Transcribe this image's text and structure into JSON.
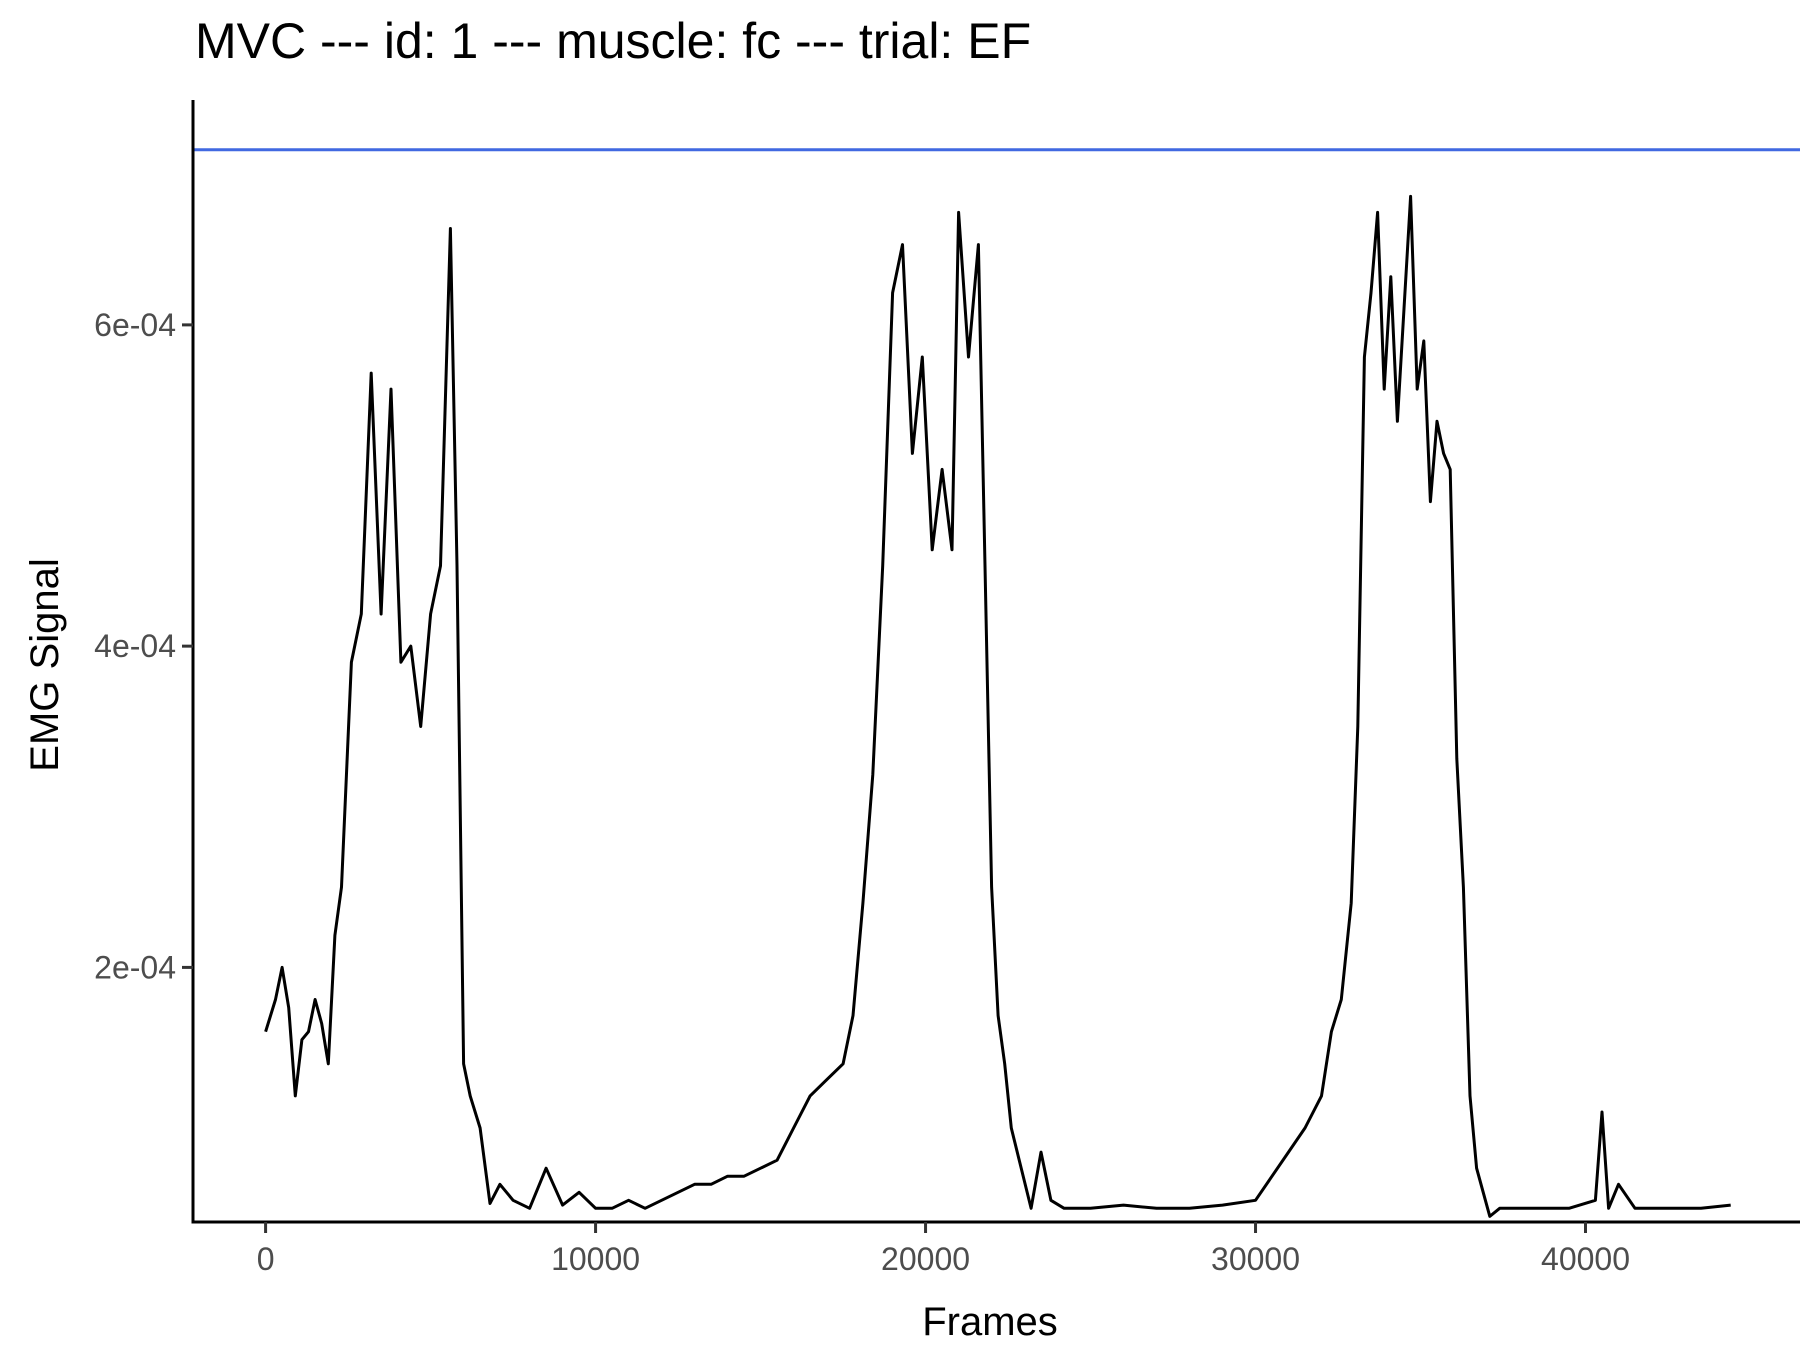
{
  "chart_data": {
    "type": "line",
    "title": "MVC --- id: 1 --- muscle: fc --- trial: EF",
    "xlabel": "Frames",
    "ylabel": "EMG Signal",
    "xlim": [
      -2200,
      46500
    ],
    "ylim": [
      4.15e-05,
      0.00074
    ],
    "x_ticks": [
      0,
      10000,
      20000,
      30000,
      40000
    ],
    "x_tick_labels": [
      "0",
      "10000",
      "20000",
      "30000",
      "40000"
    ],
    "y_ticks": [
      0.0002,
      0.0004,
      0.0006
    ],
    "y_tick_labels": [
      "2e-04",
      "4e-04",
      "6e-04"
    ],
    "grid": false,
    "reference_line": {
      "y": 0.000709,
      "color": "#4169E1"
    },
    "series": [
      {
        "color": "#000000",
        "x": [
          0,
          300,
          500,
          700,
          900,
          1100,
          1300,
          1500,
          1700,
          1900,
          2100,
          2300,
          2600,
          2900,
          3200,
          3500,
          3800,
          4100,
          4400,
          4700,
          5000,
          5300,
          5600,
          5800,
          6000,
          6200,
          6500,
          6800,
          7100,
          7500,
          8000,
          8500,
          9000,
          9500,
          10000,
          10500,
          11000,
          11500,
          12000,
          12500,
          13000,
          13500,
          14000,
          14500,
          15000,
          15500,
          16000,
          16500,
          17000,
          17500,
          17800,
          18100,
          18400,
          18700,
          19000,
          19300,
          19600,
          19900,
          20200,
          20500,
          20800,
          21000,
          21300,
          21600,
          21800,
          22000,
          22200,
          22400,
          22600,
          22900,
          23200,
          23500,
          23800,
          24200,
          25000,
          26000,
          27000,
          28000,
          29000,
          30000,
          30500,
          31000,
          31500,
          32000,
          32300,
          32600,
          32900,
          33100,
          33300,
          33500,
          33700,
          33900,
          34100,
          34300,
          34500,
          34700,
          34900,
          35100,
          35300,
          35500,
          35700,
          35900,
          36100,
          36300,
          36500,
          36700,
          36900,
          37100,
          37400,
          37800,
          38500,
          39500,
          40300,
          40500,
          40700,
          41000,
          41500,
          42500,
          43500,
          44400
        ],
        "y": [
          0.00016,
          0.00018,
          0.0002,
          0.000175,
          0.00012,
          0.000155,
          0.00016,
          0.00018,
          0.000165,
          0.00014,
          0.00022,
          0.00025,
          0.00039,
          0.00042,
          0.00057,
          0.00042,
          0.00056,
          0.00039,
          0.0004,
          0.00035,
          0.00042,
          0.00045,
          0.00066,
          0.00045,
          0.00014,
          0.00012,
          0.0001,
          5.3e-05,
          6.5e-05,
          5.5e-05,
          5e-05,
          7.5e-05,
          5.2e-05,
          6e-05,
          5e-05,
          5e-05,
          5.5e-05,
          5e-05,
          5.5e-05,
          6e-05,
          6.5e-05,
          6.5e-05,
          7e-05,
          7e-05,
          7.5e-05,
          8e-05,
          0.0001,
          0.00012,
          0.00013,
          0.00014,
          0.00017,
          0.00024,
          0.00032,
          0.00045,
          0.00062,
          0.00065,
          0.00052,
          0.00058,
          0.00046,
          0.00051,
          0.00046,
          0.00067,
          0.00058,
          0.00065,
          0.00045,
          0.00025,
          0.00017,
          0.00014,
          0.0001,
          7.5e-05,
          5e-05,
          8.5e-05,
          5.5e-05,
          5e-05,
          5e-05,
          5.2e-05,
          5e-05,
          5e-05,
          5.2e-05,
          5.5e-05,
          7e-05,
          8.5e-05,
          0.0001,
          0.00012,
          0.00016,
          0.00018,
          0.00024,
          0.00035,
          0.00058,
          0.00062,
          0.00067,
          0.00056,
          0.00063,
          0.00054,
          0.00061,
          0.00068,
          0.00056,
          0.00059,
          0.00049,
          0.00054,
          0.00052,
          0.00051,
          0.00033,
          0.00025,
          0.00012,
          7.5e-05,
          6e-05,
          4.5e-05,
          5e-05,
          5e-05,
          5e-05,
          5e-05,
          5.5e-05,
          0.00011,
          5e-05,
          6.5e-05,
          5e-05,
          5e-05,
          5e-05,
          5.2e-05
        ]
      }
    ]
  }
}
